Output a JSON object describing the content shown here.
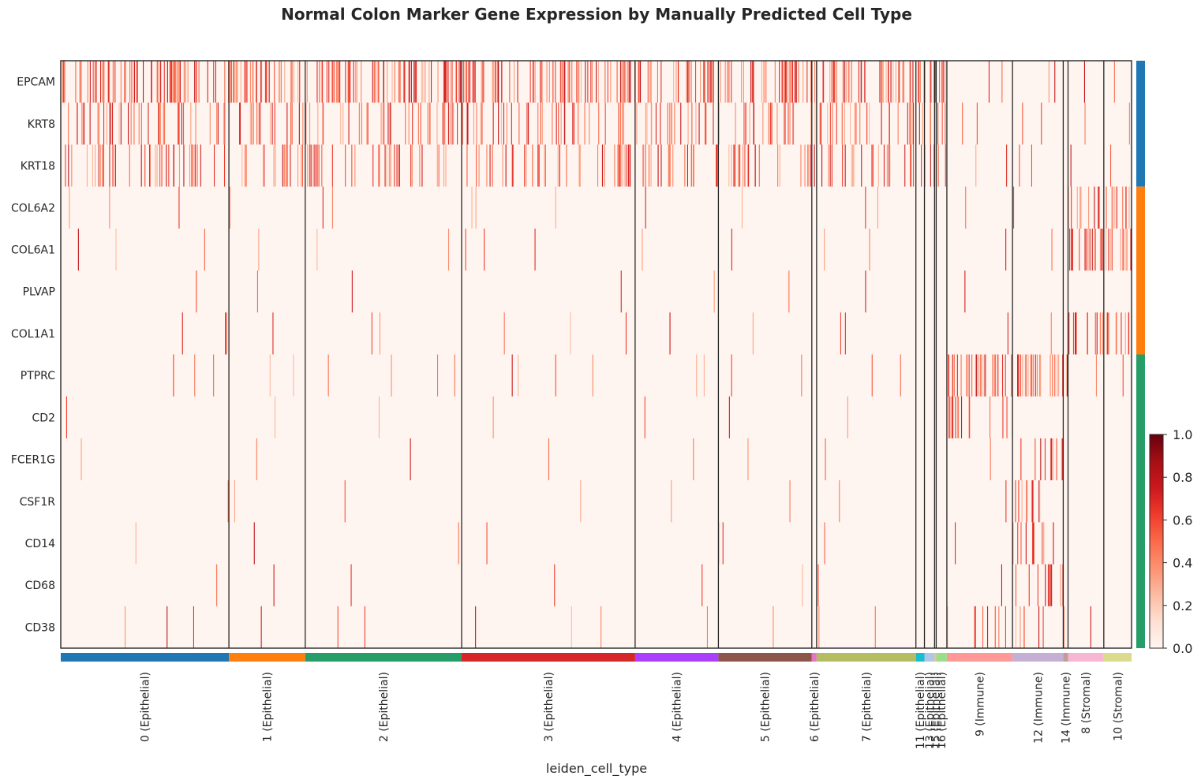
{
  "chart_data": {
    "type": "heatmap",
    "title": "Normal Colon Marker Gene Expression by Manually Predicted Cell Type",
    "xlabel": "leiden_cell_type",
    "genes": [
      "EPCAM",
      "KRT8",
      "KRT18",
      "COL6A2",
      "COL6A1",
      "PLVAP",
      "COL1A1",
      "PTPRC",
      "CD2",
      "FCER1G",
      "CSF1R",
      "CD14",
      "CD68",
      "CD38"
    ],
    "gene_groups": [
      {
        "genes": [
          "EPCAM",
          "KRT8",
          "KRT18"
        ],
        "color": "#1f77b4"
      },
      {
        "genes": [
          "COL6A2",
          "COL6A1",
          "PLVAP",
          "COL1A1"
        ],
        "color": "#ff7f0e"
      },
      {
        "genes": [
          "PTPRC",
          "CD2",
          "FCER1G",
          "CSF1R",
          "CD14",
          "CD68",
          "CD38"
        ],
        "color": "#279e68"
      }
    ],
    "clusters": [
      {
        "label": "0 (Epithelial)",
        "frac": 0.1575,
        "color": "#1f77b4"
      },
      {
        "label": "1 (Epithelial)",
        "frac": 0.0715,
        "color": "#ff7f0e"
      },
      {
        "label": "2 (Epithelial)",
        "frac": 0.1465,
        "color": "#279e68"
      },
      {
        "label": "3 (Epithelial)",
        "frac": 0.1625,
        "color": "#d62728"
      },
      {
        "label": "4 (Epithelial)",
        "frac": 0.078,
        "color": "#aa40fc"
      },
      {
        "label": "5 (Epithelial)",
        "frac": 0.0875,
        "color": "#8c564b"
      },
      {
        "label": "6 (Epithelial)",
        "frac": 0.0045,
        "color": "#e377c2"
      },
      {
        "label": "7 (Epithelial)",
        "frac": 0.093,
        "color": "#b5bd61"
      },
      {
        "label": "11 (Epithelial)",
        "frac": 0.008,
        "color": "#17becf"
      },
      {
        "label": "13 (Epithelial)",
        "frac": 0.0095,
        "color": "#aec7e8"
      },
      {
        "label": "15 (Epithelial)",
        "frac": 0.0015,
        "color": "#ffbb78"
      },
      {
        "label": "16 (Epithelial)",
        "frac": 0.01,
        "color": "#98df8a"
      },
      {
        "label": "9 (Immune)",
        "frac": 0.0615,
        "color": "#ff9896"
      },
      {
        "label": "12 (Immune)",
        "frac": 0.0475,
        "color": "#c5b0d5"
      },
      {
        "label": "14 (Immune)",
        "frac": 0.0045,
        "color": "#c49c94"
      },
      {
        "label": "8 (Stromal)",
        "frac": 0.0335,
        "color": "#f7b6d2"
      },
      {
        "label": "10 (Stromal)",
        "frac": 0.026,
        "color": "#dbdb8d"
      }
    ],
    "colorbar": {
      "min": 0.0,
      "max": 1.0,
      "ticks": [
        "0.0",
        "0.2",
        "0.4",
        "0.6",
        "0.8",
        "1.0"
      ],
      "cmap": "Reds"
    }
  }
}
